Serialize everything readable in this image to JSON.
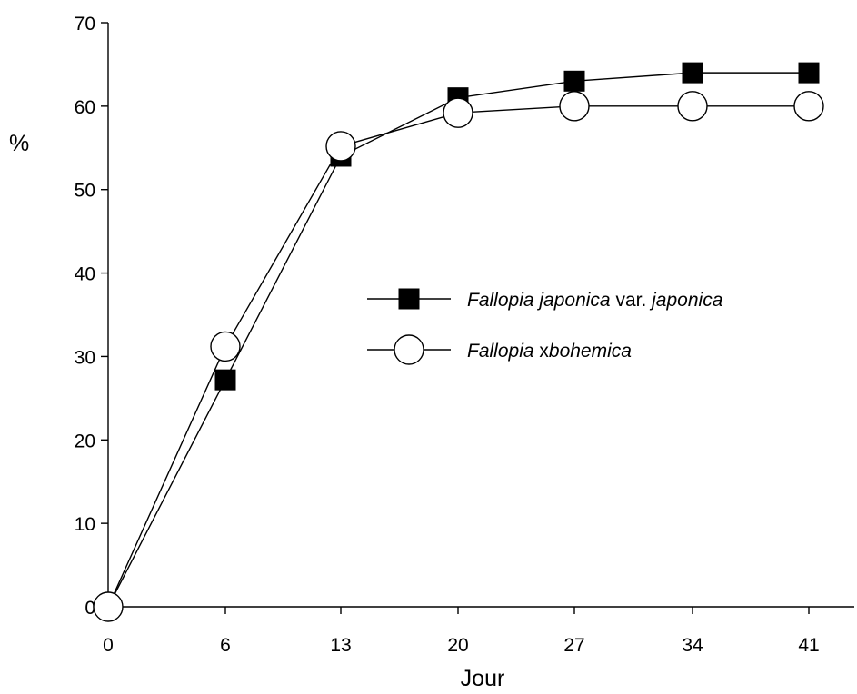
{
  "chart_data": {
    "type": "line",
    "title": "",
    "xlabel": "Jour",
    "ylabel": "%",
    "x": [
      0,
      6,
      13,
      20,
      27,
      34,
      41
    ],
    "x_tick_labels": [
      "0",
      "6",
      "13",
      "20",
      "27",
      "34",
      "41"
    ],
    "y_tick_labels": [
      "0",
      "10",
      "20",
      "30",
      "40",
      "50",
      "60",
      "70"
    ],
    "ylim": [
      0,
      70
    ],
    "grid": false,
    "legend_position": "center-right",
    "series": [
      {
        "name": "Fallopia japonica var. japonica",
        "name_parts": [
          {
            "text": "Fallopia japonica",
            "italic": true
          },
          {
            "text": " var. ",
            "italic": false
          },
          {
            "text": "japonica",
            "italic": true
          }
        ],
        "marker": "filled-square",
        "values": [
          0,
          27.2,
          54,
          61,
          63,
          64,
          64
        ]
      },
      {
        "name": "Fallopia xbohemica",
        "name_parts": [
          {
            "text": "Fallopia ",
            "italic": true
          },
          {
            "text": "x",
            "italic": false
          },
          {
            "text": "bohemica",
            "italic": true
          }
        ],
        "marker": "open-circle",
        "values": [
          0,
          31.2,
          55.2,
          59.2,
          60,
          60,
          60
        ]
      }
    ],
    "colors": {
      "line": "#000000",
      "marker_fill": "#000000",
      "background": "#ffffff"
    }
  }
}
